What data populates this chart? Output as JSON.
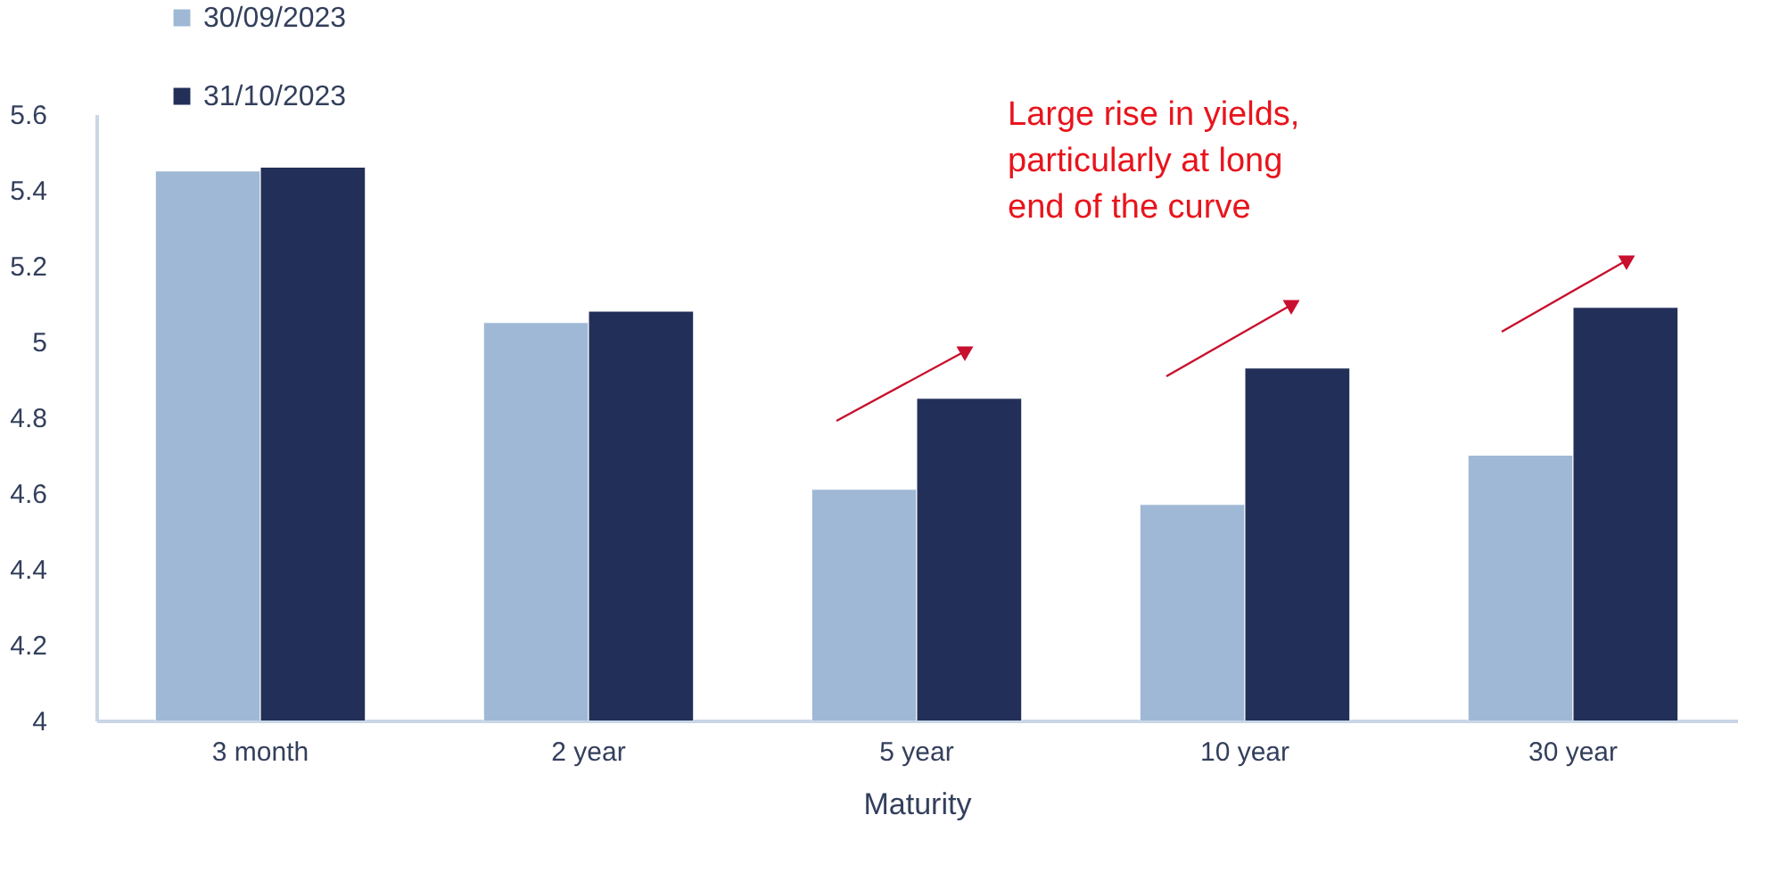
{
  "chart_data": {
    "type": "bar",
    "categories": [
      "3 month",
      "2 year",
      "5 year",
      "10 year",
      "30 year"
    ],
    "series": [
      {
        "name": "30/09/2023",
        "color": "#9fb8d5",
        "values": [
          5.45,
          5.05,
          4.61,
          4.57,
          4.7
        ]
      },
      {
        "name": "31/10/2023",
        "color": "#223059",
        "values": [
          5.46,
          5.08,
          4.85,
          4.93,
          5.09
        ]
      }
    ],
    "xlabel": "Maturity",
    "ylim": [
      4,
      5.6
    ],
    "yticks": [
      4,
      4.2,
      4.4,
      4.6,
      4.8,
      5,
      5.2,
      5.4,
      5.6
    ],
    "grid": false,
    "legend": "top left",
    "annotations": [
      "Large rise in yields,\nparticularly at long\nend of the curve"
    ]
  }
}
